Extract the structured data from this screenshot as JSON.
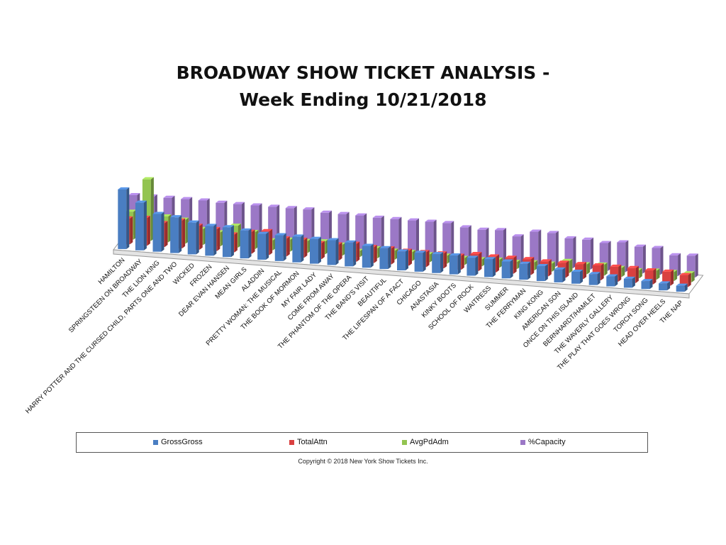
{
  "title_line1": "BROADWAY  SHOW TICKET ANALYSIS -",
  "title_line2": "Week Ending 10/21/2018",
  "copyright": "Copyright © 2018 New York Show Tickets Inc.",
  "colors": {
    "gross": "#4a7ec2",
    "attn": "#d94040",
    "avgpd": "#93c451",
    "capacity": "#9b78c6"
  },
  "chart_data": {
    "type": "bar",
    "style": "3d-clustered",
    "legend_position": "bottom",
    "grid": false,
    "categories": [
      "HAMILTON",
      "SPRINGSTEEN ON BROADWAY",
      "THE LION KING",
      "HARRY POTTER AND THE CURSED CHILD, PARTS ONE AND TWO",
      "WICKED",
      "FROZEN",
      "DEAR EVAN HANSEN",
      "MEAN GIRLS",
      "ALADDIN",
      "PRETTY WOMAN: THE MUSICAL",
      "THE BOOK OF MORMON",
      "MY FAIR LADY",
      "COME FROM AWAY",
      "THE PHANTOM OF THE OPERA",
      "THE BAND'S VISIT",
      "BEAUTIFUL",
      "THE LIFESPAN OF A FACT",
      "CHICAGO",
      "ANASTASIA",
      "KINKY BOOTS",
      "SCHOOL OF ROCK",
      "WAITRESS",
      "SUMMER",
      "THE FERRYMAN",
      "KING KONG",
      "AMERICAN SON",
      "ONCE ON THIS ISLAND",
      "BERNHARDT/HAMLET",
      "THE WAVERLY GALLERY",
      "THE PLAY THAT GOES WRONG",
      "TORCH SONG",
      "HEAD OVER HEELS",
      "THE NAP"
    ],
    "series": [
      {
        "name": "GrossGross",
        "values": [
          3.0,
          2.4,
          1.9,
          1.8,
          1.6,
          1.5,
          1.5,
          1.4,
          1.3,
          1.3,
          1.3,
          1.25,
          1.25,
          1.2,
          1.1,
          1.05,
          0.95,
          0.95,
          0.95,
          0.95,
          0.9,
          0.9,
          0.85,
          0.8,
          0.75,
          0.65,
          0.6,
          0.55,
          0.5,
          0.45,
          0.4,
          0.35,
          0.3
        ]
      },
      {
        "name": "TotalAttn",
        "values": [
          1.3,
          1.4,
          1.2,
          1.4,
          1.2,
          1.1,
          0.9,
          1.1,
          1.2,
          0.9,
          0.9,
          0.8,
          0.8,
          0.9,
          0.8,
          0.8,
          0.75,
          0.75,
          0.75,
          0.7,
          0.85,
          0.8,
          0.8,
          0.8,
          0.75,
          0.75,
          0.75,
          0.75,
          0.75,
          0.75,
          0.7,
          0.7,
          0.6
        ]
      },
      {
        "name": "AvgPdAdm",
        "values": [
          1.4,
          3.1,
          1.3,
          1.2,
          0.8,
          0.7,
          1.1,
          0.85,
          0.5,
          0.6,
          0.6,
          0.65,
          0.55,
          0.3,
          0.5,
          0.45,
          0.45,
          0.4,
          0.4,
          0.35,
          0.35,
          0.4,
          0.35,
          0.4,
          0.4,
          0.6,
          0.5,
          0.55,
          0.45,
          0.4,
          0.45,
          0.45,
          0.45
        ]
      },
      {
        "name": "%Capacity",
        "values": [
          2.0,
          2.0,
          2.0,
          2.0,
          2.0,
          1.95,
          1.95,
          1.95,
          1.95,
          1.95,
          1.95,
          1.85,
          1.85,
          1.85,
          1.8,
          1.8,
          1.8,
          1.8,
          1.8,
          1.65,
          1.6,
          1.65,
          1.4,
          1.7,
          1.7,
          1.5,
          1.5,
          1.4,
          1.5,
          1.35,
          1.35,
          1.05,
          1.1
        ]
      }
    ]
  }
}
